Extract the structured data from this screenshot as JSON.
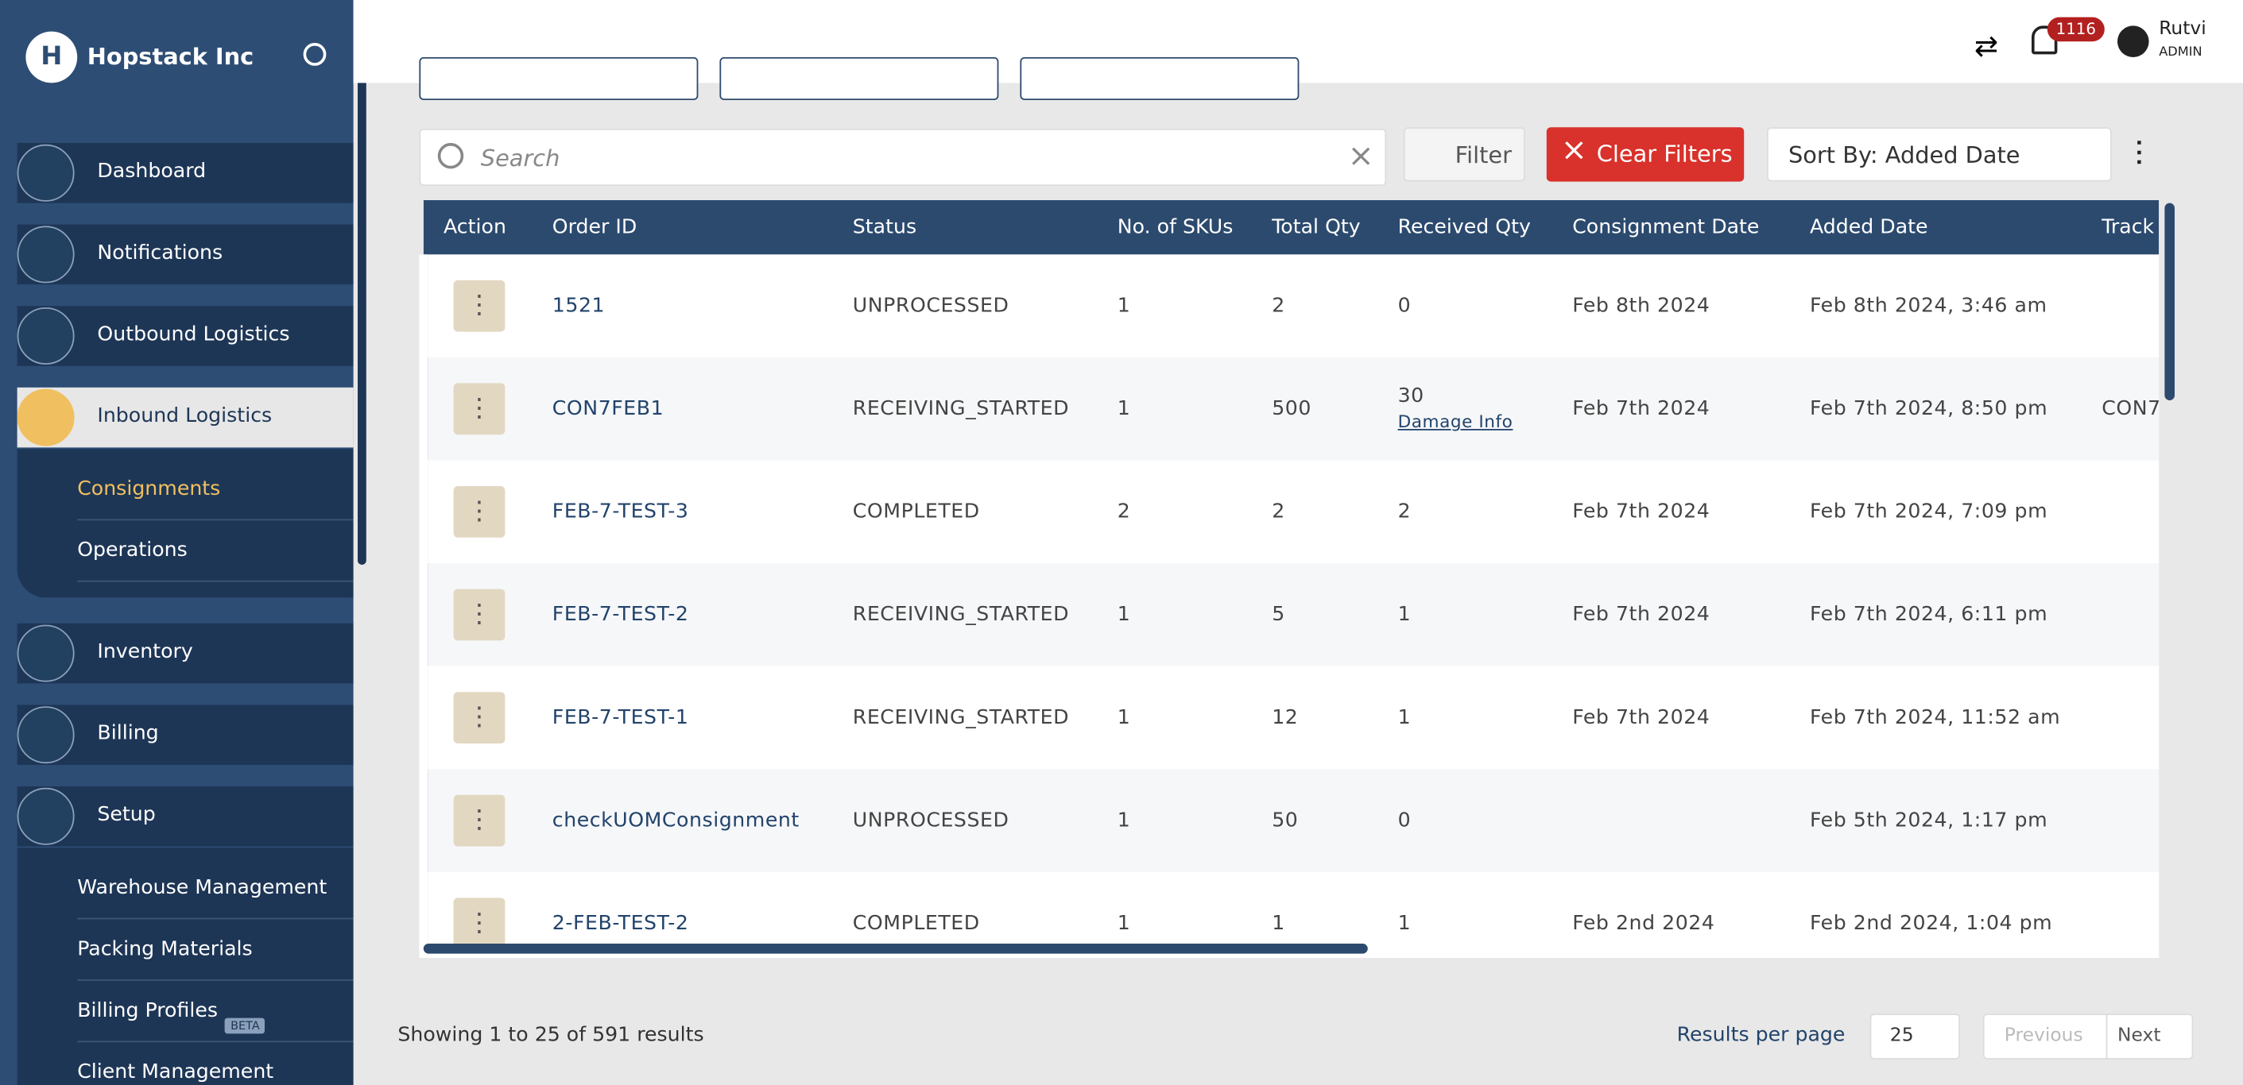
{
  "sidebar": {
    "company": "Hopstack Inc",
    "nav": [
      {
        "label": "Dashboard"
      },
      {
        "label": "Notifications"
      },
      {
        "label": "Outbound Logistics"
      },
      {
        "label": "Inbound Logistics",
        "active": true,
        "children": [
          {
            "label": "Consignments",
            "active": true
          },
          {
            "label": "Operations"
          }
        ]
      },
      {
        "label": "Inventory"
      },
      {
        "label": "Billing"
      },
      {
        "label": "Setup",
        "children": [
          {
            "label": "Warehouse Management"
          },
          {
            "label": "Packing Materials"
          },
          {
            "label": "Billing Profiles",
            "badge": "BETA"
          },
          {
            "label": "Client Management"
          }
        ]
      }
    ]
  },
  "header": {
    "notifications": "1116",
    "user": "Rutvi",
    "role": "ADMIN"
  },
  "toolbar": {
    "search": "Search",
    "filter": "Filter",
    "clear": "Clear Filters",
    "sort": "Sort By: Added Date"
  },
  "table": {
    "columns": [
      "Action",
      "Order ID",
      "Status",
      "No. of SKUs",
      "Total Qty",
      "Received Qty",
      "Consignment Date",
      "Added Date",
      "Track"
    ],
    "rows": [
      {
        "id": "1521",
        "status": "UNPROCESSED",
        "skus": 1,
        "total": 2,
        "received": 0,
        "cons_date": "Feb 8th 2024",
        "added": "Feb 8th 2024, 3:46 am"
      },
      {
        "id": "CON7FEB1",
        "status": "RECEIVING_STARTED",
        "skus": 1,
        "total": 500,
        "received": 30,
        "received_note": "Damage Info",
        "cons_date": "Feb 7th 2024",
        "added": "Feb 7th 2024, 8:50 pm",
        "tracking": "CON7"
      },
      {
        "id": "FEB-7-TEST-3",
        "status": "COMPLETED",
        "skus": 2,
        "total": 2,
        "received": 2,
        "cons_date": "Feb 7th 2024",
        "added": "Feb 7th 2024, 7:09 pm"
      },
      {
        "id": "FEB-7-TEST-2",
        "status": "RECEIVING_STARTED",
        "skus": 1,
        "total": 5,
        "received": 1,
        "cons_date": "Feb 7th 2024",
        "added": "Feb 7th 2024, 6:11 pm"
      },
      {
        "id": "FEB-7-TEST-1",
        "status": "RECEIVING_STARTED",
        "skus": 1,
        "total": 12,
        "received": 1,
        "cons_date": "Feb 7th 2024",
        "added": "Feb 7th 2024, 11:52 am"
      },
      {
        "id": "checkUOMConsignment",
        "status": "UNPROCESSED",
        "skus": 1,
        "total": 50,
        "received": 0,
        "added": "Feb 5th 2024, 1:17 pm"
      },
      {
        "id": "2-FEB-TEST-2",
        "status": "COMPLETED",
        "skus": 1,
        "total": 1,
        "received": 1,
        "cons_date": "Feb 2nd 2024",
        "added": "Feb 2nd 2024, 1:04 pm"
      }
    ]
  },
  "footer": {
    "showing": "Showing 1 to 25 of 591 results",
    "per_page_label": "Results per page",
    "per_page": "25",
    "previous": "Previous",
    "next": "Next"
  }
}
